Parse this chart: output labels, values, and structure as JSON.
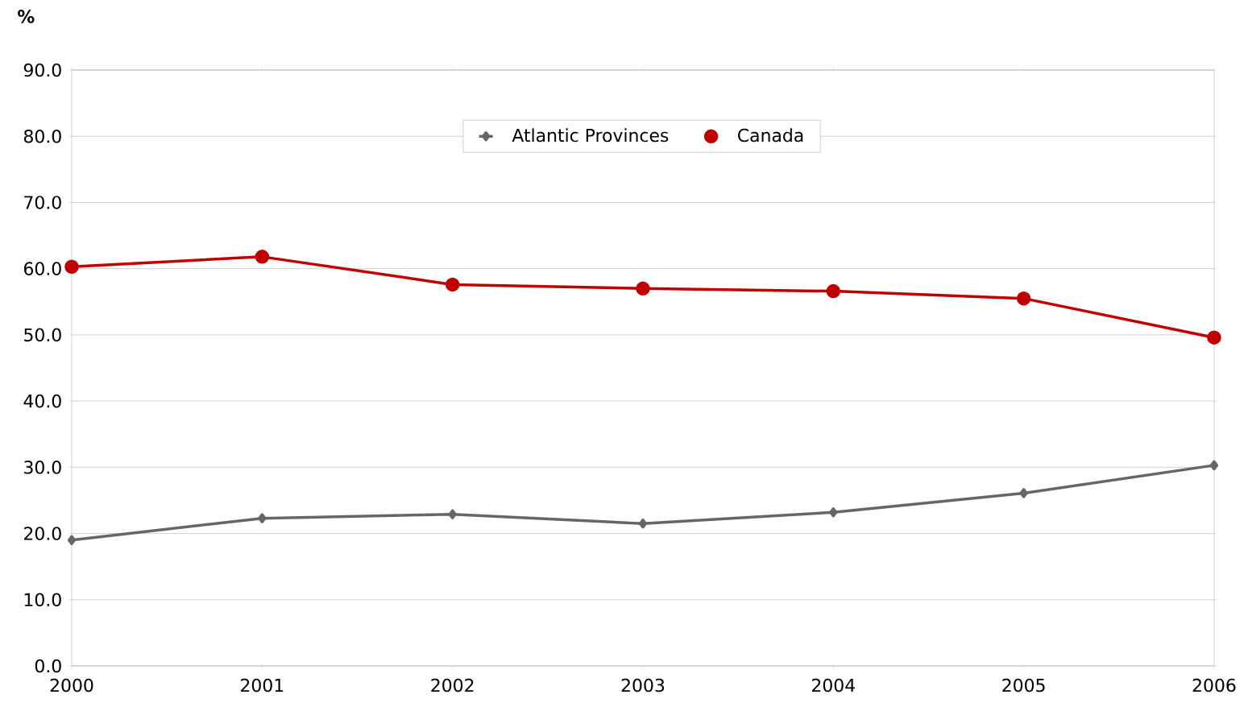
{
  "chart_data": {
    "type": "line",
    "ylabel": "%",
    "x": [
      2000,
      2001,
      2002,
      2003,
      2004,
      2005,
      2006
    ],
    "series": [
      {
        "name": "Atlantic Provinces",
        "color": "#666666",
        "marker": "diamond",
        "values": [
          19.0,
          22.3,
          22.9,
          21.5,
          23.2,
          26.1,
          30.3
        ]
      },
      {
        "name": "Canada",
        "color": "#c00000",
        "marker": "circle",
        "values": [
          60.3,
          61.8,
          57.6,
          57.0,
          56.6,
          55.5,
          49.6
        ]
      }
    ],
    "xlim": [
      2000,
      2006
    ],
    "xticks": [
      2000,
      2001,
      2002,
      2003,
      2004,
      2005,
      2006
    ],
    "ylim": [
      0,
      90
    ],
    "yticks": [
      {
        "value": 0,
        "label": "0.0"
      },
      {
        "value": 10,
        "label": "10.0"
      },
      {
        "value": 20,
        "label": "20.0"
      },
      {
        "value": 30,
        "label": "30.0"
      },
      {
        "value": 40,
        "label": "40.0"
      },
      {
        "value": 50,
        "label": "50.0"
      },
      {
        "value": 60,
        "label": "60.0"
      },
      {
        "value": 70,
        "label": "70.0"
      },
      {
        "value": 80,
        "label": "80.0"
      },
      {
        "value": 90,
        "label": "90.0"
      }
    ],
    "grid": "y",
    "legend": "top",
    "line_style": "solid"
  }
}
